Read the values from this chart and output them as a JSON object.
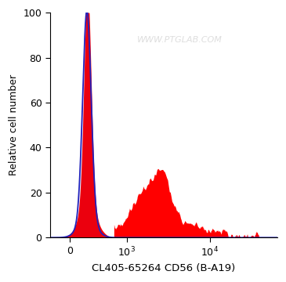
{
  "xlabel": "CL405-65264 CD56 (B-A19)",
  "ylabel": "Relative cell number",
  "watermark": "WWW.PTGLAB.COM",
  "ylim": [
    0,
    100
  ],
  "yticks": [
    0,
    20,
    40,
    60,
    80,
    100
  ],
  "bg_color": "#ffffff",
  "fill_red": "#ff0000",
  "fill_blue": "#0000bb",
  "line_blue": "#2222bb",
  "linthresh": 500,
  "linscale": 0.35,
  "xlim_left": -300,
  "xlim_right": 65000,
  "main_peak_mu": 280,
  "main_peak_sigma_narrow": 55,
  "main_peak_sigma_wide": 130,
  "main_peak_amp": 95,
  "blue_peak_mu": 270,
  "blue_peak_sigma": 65,
  "blue_peak_amp": 93,
  "secondary_base": 6,
  "secondary_seed": 77
}
